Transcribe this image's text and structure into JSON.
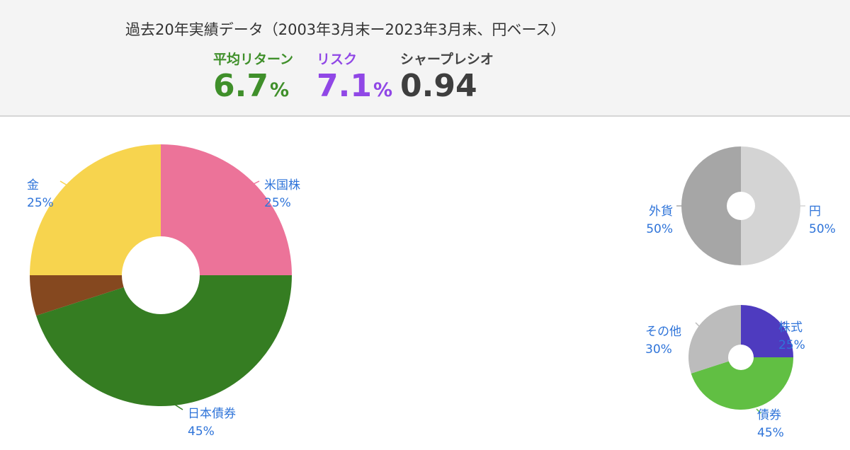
{
  "header": {
    "period": "過去20年実績データ（2003年3月末ー2023年3月末、円ベース）",
    "metrics": {
      "return": {
        "label": "平均リターン",
        "value": "6.7",
        "unit": "%",
        "color": "#3f8f2a"
      },
      "risk": {
        "label": "リスク",
        "value": "7.1",
        "unit": "%",
        "color": "#9047e6"
      },
      "sharpe": {
        "label": "シャープレシオ",
        "value": "0.94"
      }
    }
  },
  "label_color": "#2f74d9",
  "chart_data": [
    {
      "type": "pie",
      "donut": true,
      "slices": [
        {
          "label": "米国株",
          "value": 25,
          "value_label": "25%",
          "color": "#ec7399"
        },
        {
          "label": "日本債券",
          "value": 45,
          "value_label": "45%",
          "color": "#357d22"
        },
        {
          "label": "",
          "value": 5,
          "value_label": "",
          "color": "#85481f"
        },
        {
          "label": "金",
          "value": 25,
          "value_label": "25%",
          "color": "#f7d44e"
        }
      ]
    },
    {
      "type": "pie",
      "donut": true,
      "slices": [
        {
          "label": "円",
          "value": 50,
          "value_label": "50%",
          "color": "#d4d4d4"
        },
        {
          "label": "外貨",
          "value": 50,
          "value_label": "50%",
          "color": "#a6a6a6"
        }
      ]
    },
    {
      "type": "pie",
      "donut": true,
      "slices": [
        {
          "label": "株式",
          "value": 25,
          "value_label": "25%",
          "color": "#4e3bbf"
        },
        {
          "label": "債券",
          "value": 45,
          "value_label": "45%",
          "color": "#61bf43"
        },
        {
          "label": "その他",
          "value": 30,
          "value_label": "30%",
          "color": "#bcbcbc"
        }
      ]
    }
  ]
}
